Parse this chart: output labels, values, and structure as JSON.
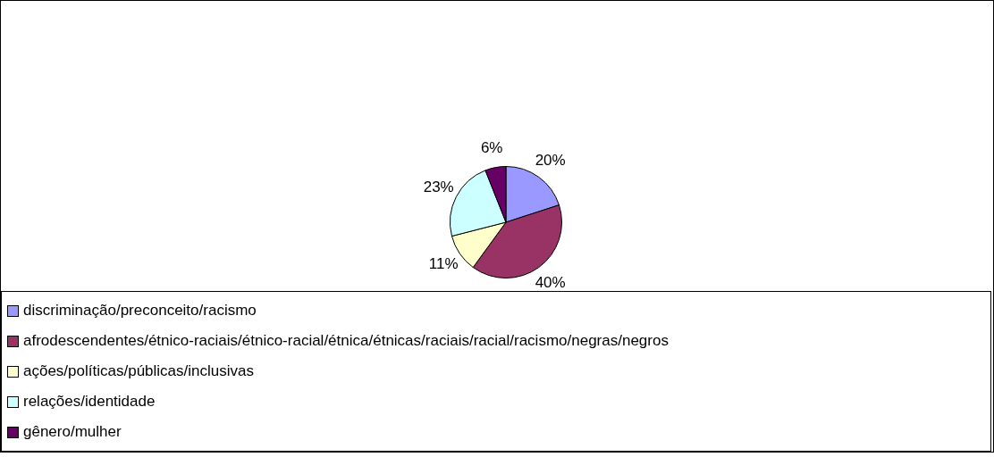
{
  "chart_data": {
    "type": "pie",
    "categories": [
      "discriminação/preconceito/racismo",
      "afrodescendentes/étnico-raciais/étnico-racial/étnica/étnicas/raciais/racial/racismo/negras/negros",
      "ações/políticas/públicas/inclusivas",
      "relações/identidade",
      "gênero/mulher"
    ],
    "values": [
      20,
      40,
      11,
      23,
      6
    ],
    "colors": [
      "#9999ff",
      "#993366",
      "#ffffcc",
      "#ccffff",
      "#660066"
    ],
    "value_labels": [
      "20%",
      "40%",
      "11%",
      "23%",
      "6%"
    ],
    "legend": "bottom"
  }
}
